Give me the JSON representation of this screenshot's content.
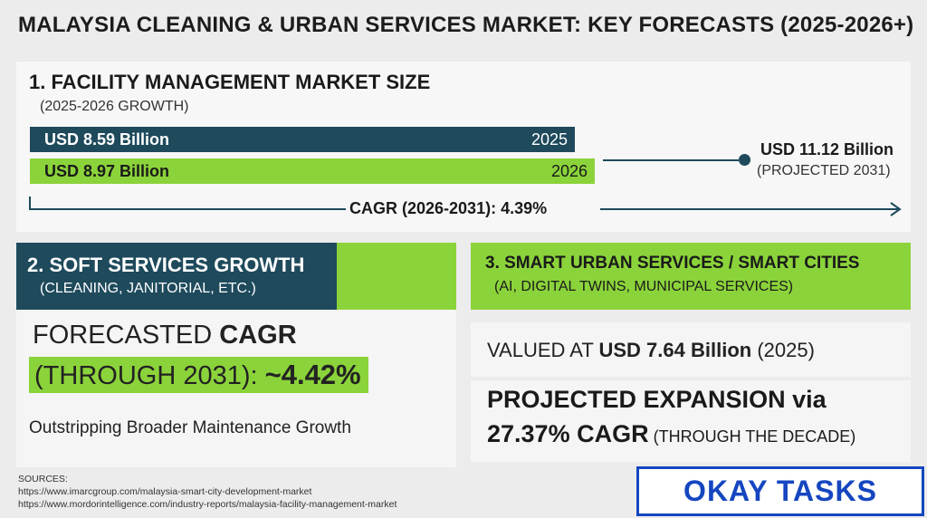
{
  "title": "MALAYSIA CLEANING & URBAN SERVICES MARKET: KEY FORECASTS (2025-2026+)",
  "section1": {
    "heading": "1. FACILITY MANAGEMENT MARKET SIZE",
    "subheading": "(2025-2026 GROWTH)",
    "bar_2025": {
      "value": "USD 8.59 Billion",
      "year": "2025"
    },
    "bar_2026": {
      "value": "USD 8.97 Billion",
      "year": "2026"
    },
    "projection": {
      "value": "USD 11.12 Billion",
      "label": "(PROJECTED 2031)"
    },
    "cagr": "CAGR (2026-2031): 4.39%"
  },
  "section2": {
    "heading": "2. SOFT SERVICES GROWTH",
    "subheading": "(CLEANING, JANITORIAL, ETC.)",
    "line1_prefix": "FORECASTED ",
    "line1_bold": "CAGR",
    "line2_prefix": "(THROUGH 2031): ",
    "line2_bold": "~4.42%",
    "note": "Outstripping Broader Maintenance Growth"
  },
  "section3": {
    "heading": "3. SMART URBAN SERVICES / SMART CITIES",
    "subheading": "(AI, DIGITAL TWINS, MUNICIPAL SERVICES)",
    "valued_prefix": "VALUED AT ",
    "valued_bold": "USD 7.64 Billion",
    "valued_suffix": " (2025)",
    "expansion_line1": "PROJECTED EXPANSION via",
    "expansion_bold": "27.37% CAGR",
    "expansion_suffix": " (THROUGH THE DECADE)"
  },
  "sources": {
    "label": "SOURCES:",
    "links": [
      "https://www.imarcgroup.com/malaysia-smart-city-development-market",
      "https://www.mordorintelligence.com/industry-reports/malaysia-facility-management-market"
    ]
  },
  "badge": "OKAY TASKS",
  "colors": {
    "navy": "#1e4a5c",
    "green": "#8bd33a",
    "badge_blue": "#1546c0"
  }
}
